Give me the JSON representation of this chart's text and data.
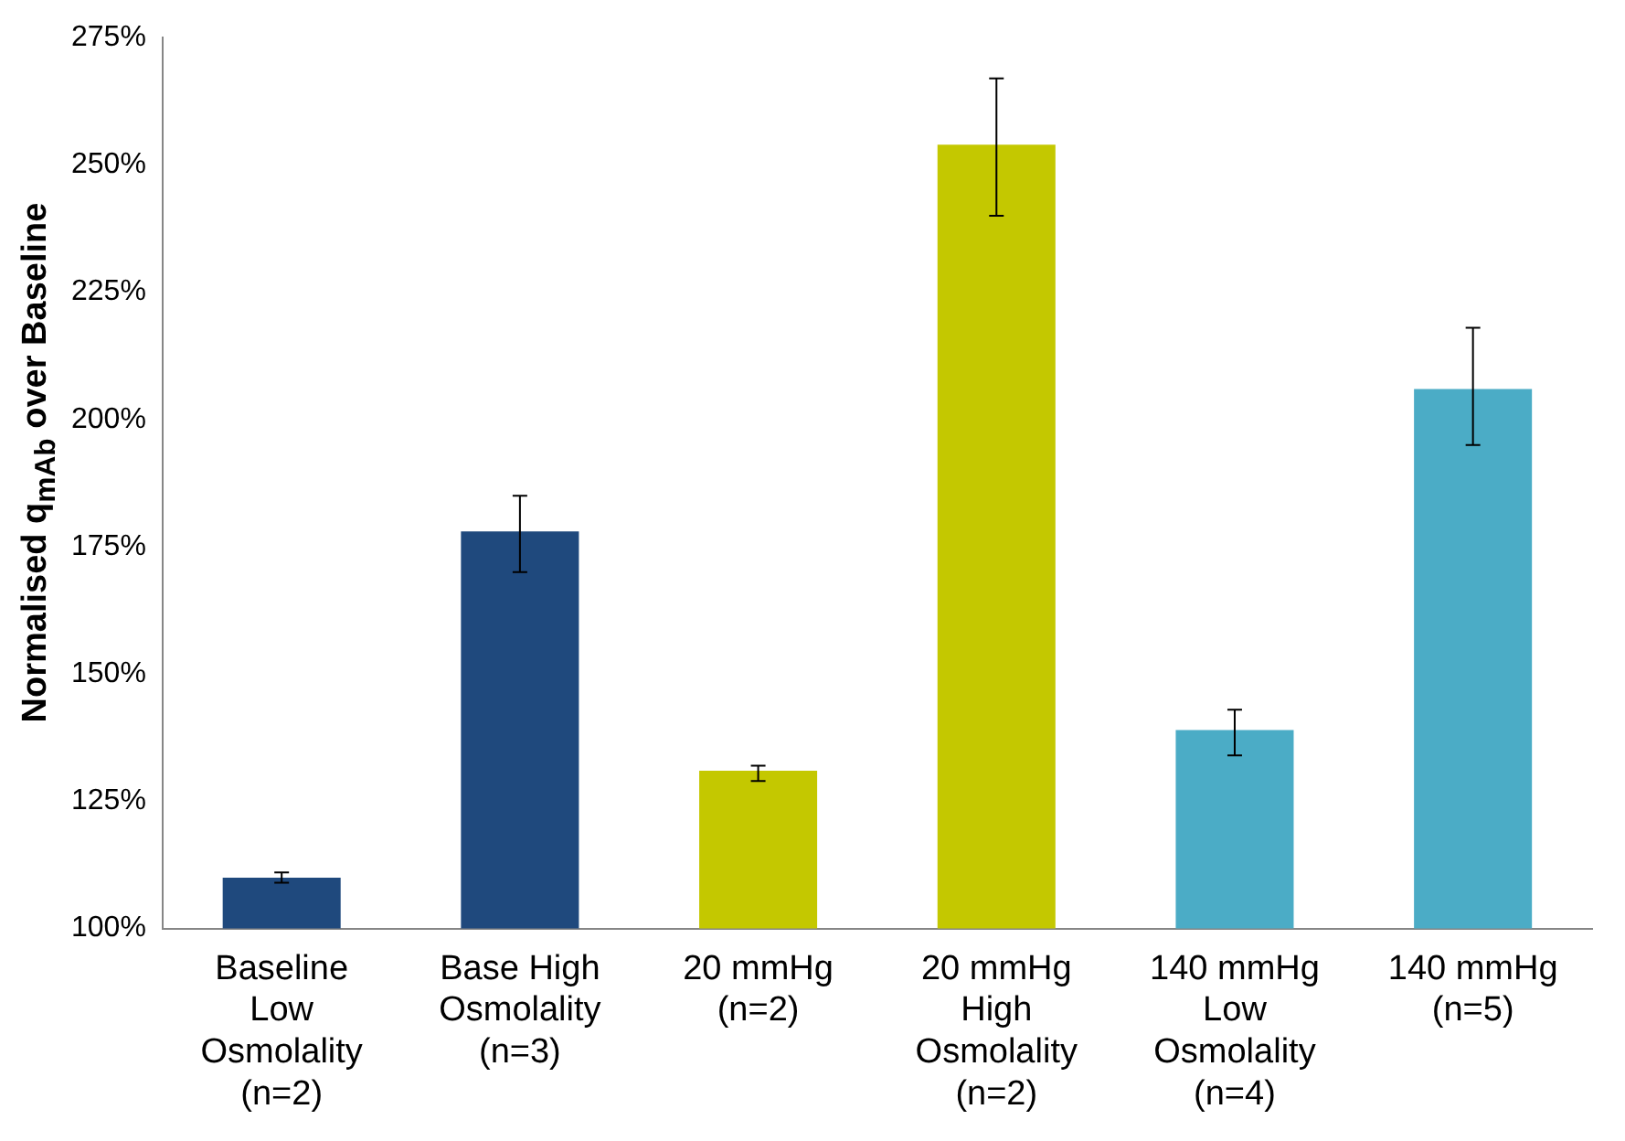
{
  "chart_data": {
    "type": "bar",
    "ylabel": "Normalised q$_{mAb}$ over Baseline",
    "categories": [
      "Baseline Low Osmolality (n=2)",
      "Base High Osmolality (n=3)",
      "20 mmHg (n=2)",
      "20 mmHg High Osmolality (n=2)",
      "140 mmHg Low Osmolality (n=4)",
      "140 mmHg (n=5)"
    ],
    "values": [
      110,
      178,
      131,
      254,
      139,
      206
    ],
    "colors": [
      "#1f497d",
      "#1f497d",
      "#c4c800",
      "#c4c800",
      "#4bacc6",
      "#4bacc6"
    ],
    "errors": [
      [
        109,
        111
      ],
      [
        170,
        185
      ],
      [
        129,
        132
      ],
      [
        240,
        267
      ],
      [
        134,
        143
      ],
      [
        195,
        218
      ]
    ],
    "ylim": [
      100,
      275
    ],
    "yticks": [
      {
        "value": 100,
        "label": "100%"
      },
      {
        "value": 125,
        "label": "125%"
      },
      {
        "value": 150,
        "label": "150%"
      },
      {
        "value": 175,
        "label": "175%"
      },
      {
        "value": 200,
        "label": "200%"
      },
      {
        "value": 225,
        "label": "225%"
      },
      {
        "value": 250,
        "label": "250%"
      },
      {
        "value": 275,
        "label": "275%"
      }
    ],
    "grid": false,
    "legend": false
  }
}
